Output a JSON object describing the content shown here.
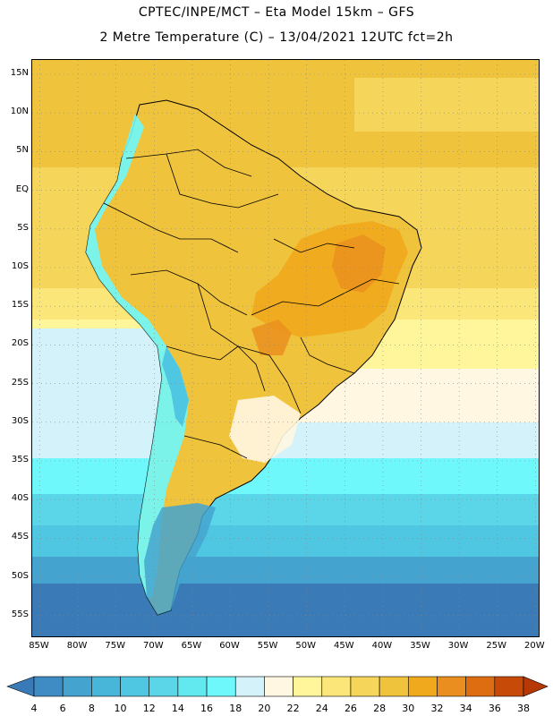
{
  "title_line1": "CPTEC/INPE/MCT –  Eta Model 15km – GFS",
  "title_line2": "2 Metre Temperature (C) – 13/04/2021 12UTC fct=2h",
  "lat_labels": [
    "15N",
    "10N",
    "5N",
    "EQ",
    "5S",
    "10S",
    "15S",
    "20S",
    "25S",
    "30S",
    "35S",
    "40S",
    "45S",
    "50S",
    "55S"
  ],
  "lon_labels": [
    "85W",
    "80W",
    "75W",
    "70W",
    "65W",
    "60W",
    "55W",
    "50W",
    "45W",
    "40W",
    "35W",
    "30W",
    "25W",
    "20W"
  ],
  "colorbar": {
    "ticks": [
      "4",
      "6",
      "8",
      "10",
      "12",
      "14",
      "16",
      "18",
      "20",
      "22",
      "24",
      "26",
      "28",
      "30",
      "32",
      "34",
      "36",
      "38"
    ],
    "colors": [
      "#3a7ab7",
      "#3f8bc3",
      "#44a4cf",
      "#48b6d9",
      "#50c7e2",
      "#5bd6e8",
      "#62e8ef",
      "#6ff8fb",
      "#d4f2f9",
      "#fff7e2",
      "#fff59a",
      "#fbe67a",
      "#f5d55a",
      "#f0c33c",
      "#f0a81c",
      "#ea8f1f",
      "#de6c10",
      "#c84a08",
      "#b63805"
    ],
    "unit": "C"
  },
  "map": {
    "region": "South America",
    "projection": "lat-lon",
    "lon_range": [
      -86,
      -19
    ],
    "lat_range": [
      -58,
      17
    ],
    "field": "2m temperature",
    "grid": true
  }
}
